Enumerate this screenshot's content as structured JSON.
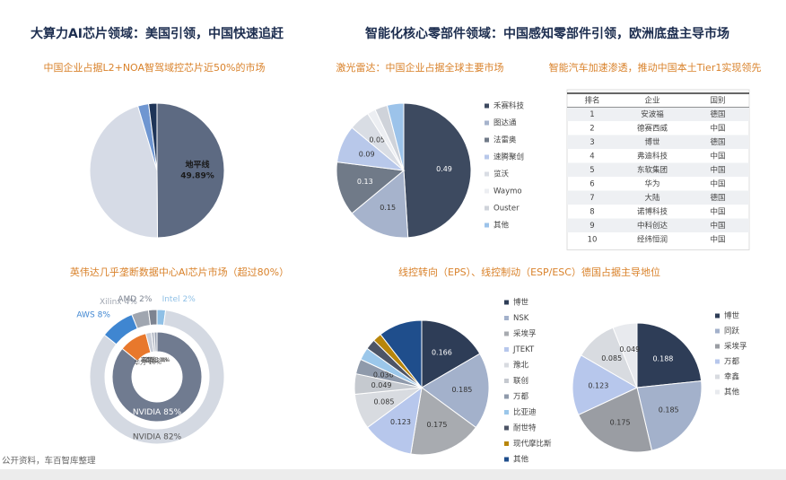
{
  "headers": {
    "left": "大算力AI芯片领域：美国引领，中国快速追赶",
    "right": "智能化核心零部件领域：中国感知零部件引领，欧洲底盘主导市场"
  },
  "source": "公开资料，车百智库整理",
  "table": {
    "title": "智能汽车加速渗透，推动中国本土Tier1实现领先",
    "columns": [
      "排名",
      "企业",
      "国别"
    ],
    "rows": [
      [
        "1",
        "安波福",
        "德国"
      ],
      [
        "2",
        "德赛西威",
        "中国"
      ],
      [
        "3",
        "博世",
        "德国"
      ],
      [
        "4",
        "弗迪科技",
        "中国"
      ],
      [
        "5",
        "东软集团",
        "中国"
      ],
      [
        "6",
        "华为",
        "中国"
      ],
      [
        "7",
        "大陆",
        "德国"
      ],
      [
        "8",
        "诺博科技",
        "中国"
      ],
      [
        "9",
        "中科创达",
        "中国"
      ],
      [
        "10",
        "经纬恒润",
        "中国"
      ]
    ]
  },
  "chart_data": [
    {
      "type": "pie",
      "title": "中国企业占据L2+NOA智驾域控芯片近50%的市场",
      "categories": [
        "地平线",
        null,
        null,
        null
      ],
      "values": [
        49.89,
        45.5,
        2.6,
        2.0
      ],
      "value_labels": [
        "49.89%",
        null,
        null,
        null
      ],
      "colors": [
        "#5d6a82",
        "#d6dbe6",
        "#6f96d1",
        "#1f3558"
      ],
      "legend": false
    },
    {
      "type": "pie",
      "title": "激光雷达：中国企业占据全球主要市场",
      "categories": [
        "禾赛科技",
        "图达通",
        "法雷奥",
        "速腾聚创",
        "览沃",
        "Waymo",
        "Ouster",
        "其他"
      ],
      "values": [
        0.49,
        0.15,
        0.13,
        0.09,
        0.05,
        0.02,
        0.03,
        0.04
      ],
      "value_labels": [
        "0.49",
        "0.15",
        "0.13",
        "0.09",
        "0.05",
        null,
        null,
        null
      ],
      "colors": [
        "#3d4a60",
        "#a6b3cc",
        "#707a88",
        "#b8c8ea",
        "#d9dde4",
        "#eceef2",
        "#cfd3da",
        "#9cc3ea"
      ],
      "legend": true
    },
    {
      "type": "donut",
      "title": "英伟达几乎垄断数据中心AI芯片市场（超过80%）",
      "rings": [
        {
          "categories": [
            "Intel",
            "NVIDIA",
            "AWS",
            "Xilinx",
            "AMD"
          ],
          "values": [
            2,
            82,
            8,
            4,
            2
          ],
          "value_labels": [
            "2%",
            "82%",
            "8%",
            "4%",
            "2%"
          ],
          "colors": [
            "#8fc0e6",
            "#d4d9e2",
            "#3f86d1",
            "#a0a6b0",
            "#7d8491"
          ]
        },
        {
          "categories": [
            "NVIDIA",
            "华为",
            "百度",
            "寒武纪",
            "其他"
          ],
          "values": [
            85,
            10,
            2,
            1,
            1
          ],
          "value_labels": [
            "85%",
            "10%",
            "2%",
            "1%",
            "1%"
          ],
          "colors": [
            "#707b90",
            "#e8782c",
            "#c9ced8",
            "#b0b6c2",
            "#9aa3b3"
          ]
        }
      ]
    },
    {
      "type": "pie",
      "title": "线控转向（EPS）、线控制动（ESP/ESC）德国占据主导地位",
      "categories": [
        "博世",
        "NSK",
        "采埃孚",
        "JTEKT",
        "豫北",
        "联创",
        "万都",
        "比亚迪",
        "耐世特",
        "现代摩比斯",
        "其他"
      ],
      "values": [
        0.166,
        0.185,
        0.175,
        0.123,
        0.085,
        0.049,
        0.036,
        0.03,
        0.025,
        0.021,
        0.105
      ],
      "value_labels": [
        "0.166",
        "0.185",
        "0.175",
        "0.123",
        "0.085",
        "0.049",
        "0.036",
        null,
        null,
        null,
        null
      ],
      "colors": [
        "#2e3d57",
        "#a3b1cb",
        "#a8abb0",
        "#b7c7ec",
        "#d8dbe0",
        "#c5c9cf",
        "#8f9aab",
        "#9bc7ea",
        "#4d5566",
        "#b8860b",
        "#1f4e8c"
      ],
      "legend": true
    },
    {
      "type": "pie",
      "categories": [
        "博世",
        "同跃",
        "采埃孚",
        "万都",
        "幸鑫",
        "其他"
      ],
      "values": [
        0.188,
        0.185,
        0.175,
        0.123,
        0.085,
        0.049
      ],
      "value_labels": [
        "0.188",
        "0.185",
        "0.175",
        "0.123",
        "0.085",
        "0.049"
      ],
      "colors": [
        "#2e3d57",
        "#a3b1cb",
        "#9a9da3",
        "#b7c7ec",
        "#d8dbe0",
        "#e8eaee"
      ],
      "legend": true
    }
  ]
}
